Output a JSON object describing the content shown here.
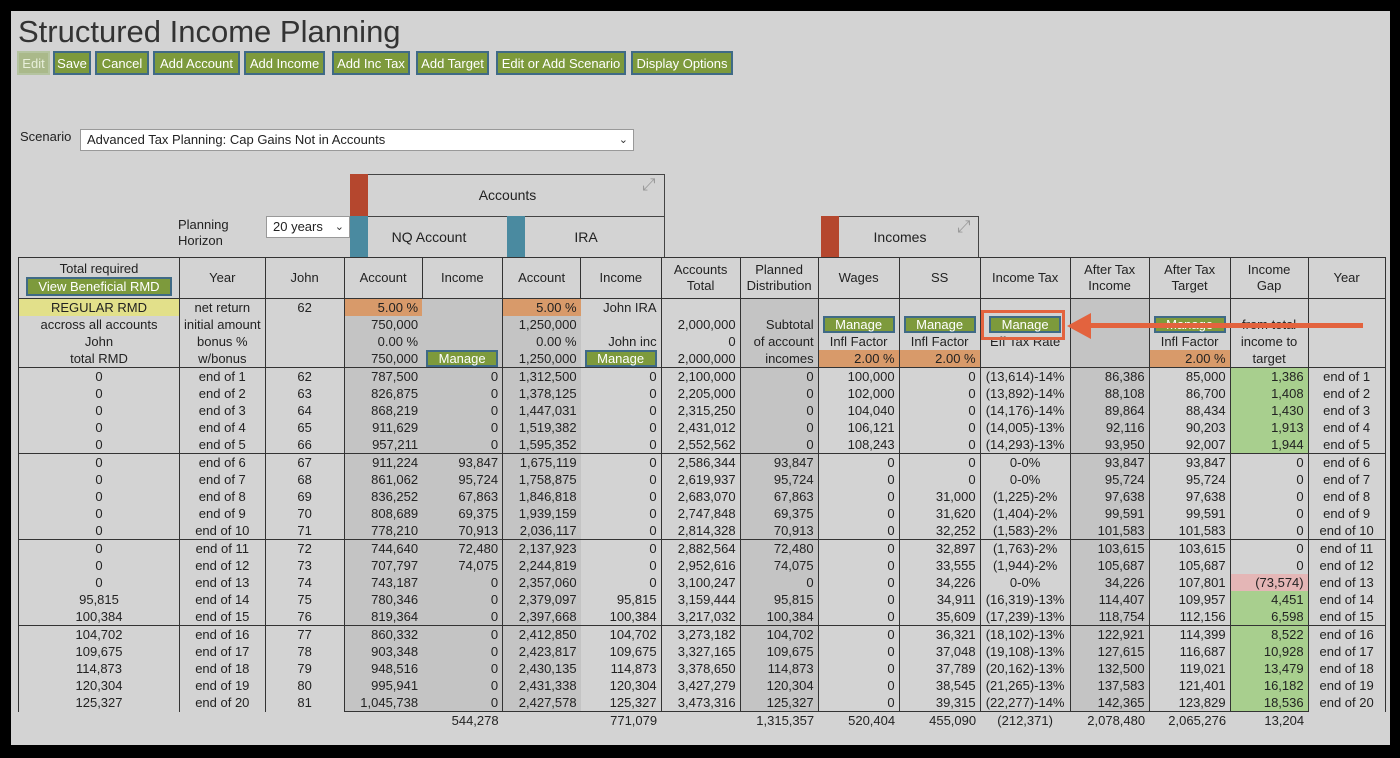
{
  "title": "Structured Income Planning",
  "toolbar": [
    "Edit",
    "Save",
    "Cancel",
    "Add Account",
    "Add Income",
    "Add Inc Tax",
    "Add Target",
    "Edit or Add Scenario",
    "Display Options"
  ],
  "scenario": {
    "label": "Scenario",
    "value": "Advanced Tax Planning: Cap Gains Not in Accounts"
  },
  "planning": {
    "label1": "Planning",
    "label2": "Horizon",
    "value": "20 years"
  },
  "groups": {
    "accounts": "Accounts",
    "nq": "NQ Account",
    "ira": "IRA",
    "incomes": "Incomes"
  },
  "headers": {
    "total_required": "Total required",
    "view_rmd": "View Beneficial RMD",
    "year": "Year",
    "john": "John",
    "account": "Account",
    "income": "Income",
    "accounts_total1": "Accounts",
    "accounts_total2": "Total",
    "planned1": "Planned",
    "planned2": "Distribution",
    "wages": "Wages",
    "ss": "SS",
    "income_tax": "Income Tax",
    "after_tax_income1": "After Tax",
    "after_tax_income2": "Income",
    "after_tax_target1": "After Tax",
    "after_tax_target2": "Target",
    "income_gap1": "Income",
    "income_gap2": "Gap",
    "year2": "Year"
  },
  "params": {
    "regular_rmd": "REGULAR RMD",
    "across": "accross all accounts",
    "john": "John",
    "total_rmd": "total RMD",
    "net_return": "net return",
    "initial_amount": "initial amount",
    "bonus": "bonus %",
    "wbonus": "w/bonus",
    "john_age": "62",
    "nq_return": "5.00  %",
    "nq_initial": "750,000",
    "nq_bonus": "0.00  %",
    "nq_wbonus": "750,000",
    "ira_return": "5.00  %",
    "ira_initial": "1,250,000",
    "ira_bonus": "0.00  %",
    "ira_wbonus": "1,250,000",
    "john_ira": "John IRA",
    "john_inc": "John inc",
    "acct_total_initial": "2,000,000",
    "acct_total_bonus": "0",
    "acct_total_wbonus": "2,000,000",
    "subtotal": "Subtotal",
    "of_account": "of account",
    "incomes_lbl": "incomes",
    "manage": "Manage",
    "infl_factor": "Infl Factor",
    "wages_infl": "2.00  %",
    "ss_infl": "2.00  %",
    "eff_tax_rate": "Eff Tax Rate",
    "target_infl": "2.00  %",
    "from_total": "from total",
    "income_to": "income to",
    "target": "target"
  },
  "rows": [
    [
      "0",
      "end of 1",
      "62",
      "787,500",
      "0",
      "1,312,500",
      "0",
      "2,100,000",
      "0",
      "100,000",
      "0",
      "(13,614)-14%",
      "86,386",
      "85,000",
      "1,386",
      "end of 1"
    ],
    [
      "0",
      "end of 2",
      "63",
      "826,875",
      "0",
      "1,378,125",
      "0",
      "2,205,000",
      "0",
      "102,000",
      "0",
      "(13,892)-14%",
      "88,108",
      "86,700",
      "1,408",
      "end of 2"
    ],
    [
      "0",
      "end of 3",
      "64",
      "868,219",
      "0",
      "1,447,031",
      "0",
      "2,315,250",
      "0",
      "104,040",
      "0",
      "(14,176)-14%",
      "89,864",
      "88,434",
      "1,430",
      "end of 3"
    ],
    [
      "0",
      "end of 4",
      "65",
      "911,629",
      "0",
      "1,519,382",
      "0",
      "2,431,012",
      "0",
      "106,121",
      "0",
      "(14,005)-13%",
      "92,116",
      "90,203",
      "1,913",
      "end of 4"
    ],
    [
      "0",
      "end of 5",
      "66",
      "957,211",
      "0",
      "1,595,352",
      "0",
      "2,552,562",
      "0",
      "108,243",
      "0",
      "(14,293)-13%",
      "93,950",
      "92,007",
      "1,944",
      "end of 5"
    ],
    [
      "0",
      "end of 6",
      "67",
      "911,224",
      "93,847",
      "1,675,119",
      "0",
      "2,586,344",
      "93,847",
      "0",
      "0",
      "0-0%",
      "93,847",
      "93,847",
      "0",
      "end of 6"
    ],
    [
      "0",
      "end of 7",
      "68",
      "861,062",
      "95,724",
      "1,758,875",
      "0",
      "2,619,937",
      "95,724",
      "0",
      "0",
      "0-0%",
      "95,724",
      "95,724",
      "0",
      "end of 7"
    ],
    [
      "0",
      "end of 8",
      "69",
      "836,252",
      "67,863",
      "1,846,818",
      "0",
      "2,683,070",
      "67,863",
      "0",
      "31,000",
      "(1,225)-2%",
      "97,638",
      "97,638",
      "0",
      "end of 8"
    ],
    [
      "0",
      "end of 9",
      "70",
      "808,689",
      "69,375",
      "1,939,159",
      "0",
      "2,747,848",
      "69,375",
      "0",
      "31,620",
      "(1,404)-2%",
      "99,591",
      "99,591",
      "0",
      "end of 9"
    ],
    [
      "0",
      "end of 10",
      "71",
      "778,210",
      "70,913",
      "2,036,117",
      "0",
      "2,814,328",
      "70,913",
      "0",
      "32,252",
      "(1,583)-2%",
      "101,583",
      "101,583",
      "0",
      "end of 10"
    ],
    [
      "0",
      "end of 11",
      "72",
      "744,640",
      "72,480",
      "2,137,923",
      "0",
      "2,882,564",
      "72,480",
      "0",
      "32,897",
      "(1,763)-2%",
      "103,615",
      "103,615",
      "0",
      "end of 11"
    ],
    [
      "0",
      "end of 12",
      "73",
      "707,797",
      "74,075",
      "2,244,819",
      "0",
      "2,952,616",
      "74,075",
      "0",
      "33,555",
      "(1,944)-2%",
      "105,687",
      "105,687",
      "0",
      "end of 12"
    ],
    [
      "0",
      "end of 13",
      "74",
      "743,187",
      "0",
      "2,357,060",
      "0",
      "3,100,247",
      "0",
      "0",
      "34,226",
      "0-0%",
      "34,226",
      "107,801",
      "(73,574)",
      "end of 13"
    ],
    [
      "95,815",
      "end of 14",
      "75",
      "780,346",
      "0",
      "2,379,097",
      "95,815",
      "3,159,444",
      "95,815",
      "0",
      "34,911",
      "(16,319)-13%",
      "114,407",
      "109,957",
      "4,451",
      "end of 14"
    ],
    [
      "100,384",
      "end of 15",
      "76",
      "819,364",
      "0",
      "2,397,668",
      "100,384",
      "3,217,032",
      "100,384",
      "0",
      "35,609",
      "(17,239)-13%",
      "118,754",
      "112,156",
      "6,598",
      "end of 15"
    ],
    [
      "104,702",
      "end of 16",
      "77",
      "860,332",
      "0",
      "2,412,850",
      "104,702",
      "3,273,182",
      "104,702",
      "0",
      "36,321",
      "(18,102)-13%",
      "122,921",
      "114,399",
      "8,522",
      "end of 16"
    ],
    [
      "109,675",
      "end of 17",
      "78",
      "903,348",
      "0",
      "2,423,817",
      "109,675",
      "3,327,165",
      "109,675",
      "0",
      "37,048",
      "(19,108)-13%",
      "127,615",
      "116,687",
      "10,928",
      "end of 17"
    ],
    [
      "114,873",
      "end of 18",
      "79",
      "948,516",
      "0",
      "2,430,135",
      "114,873",
      "3,378,650",
      "114,873",
      "0",
      "37,789",
      "(20,162)-13%",
      "132,500",
      "119,021",
      "13,479",
      "end of 18"
    ],
    [
      "120,304",
      "end of 19",
      "80",
      "995,941",
      "0",
      "2,431,338",
      "120,304",
      "3,427,279",
      "120,304",
      "0",
      "38,545",
      "(21,265)-13%",
      "137,583",
      "121,401",
      "16,182",
      "end of 19"
    ],
    [
      "125,327",
      "end of 20",
      "81",
      "1,045,738",
      "0",
      "2,427,578",
      "125,327",
      "3,473,316",
      "125,327",
      "0",
      "39,315",
      "(22,277)-14%",
      "142,365",
      "123,829",
      "18,536",
      "end of 20"
    ]
  ],
  "totals": [
    "544,278",
    "771,079",
    "1,315,357",
    "520,404",
    "455,090",
    "(212,371)",
    "2,078,480",
    "2,065,276",
    "13,204"
  ]
}
